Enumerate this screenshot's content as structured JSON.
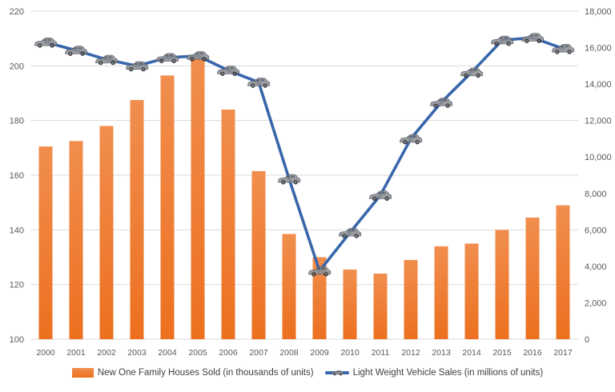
{
  "colors": {
    "bar_top": "#F18E4E",
    "bar_bottom": "#EC701F",
    "bar": "#ED7D31",
    "line": "#3866AB",
    "grid": "#DBDBDB",
    "axis_text": "#595959",
    "legend_text": "#404040",
    "car_body": "#8E9093",
    "car_window": "#555B66",
    "car_wheel": "#2E2F33",
    "car_hub": "#9AA0A6",
    "background": "#FFFFFF"
  },
  "chart_data": {
    "type": "combo-bar-line",
    "title": "",
    "categories": [
      "2000",
      "2001",
      "2002",
      "2003",
      "2004",
      "2005",
      "2006",
      "2007",
      "2008",
      "2009",
      "2010",
      "2011",
      "2012",
      "2013",
      "2014",
      "2015",
      "2016",
      "2017"
    ],
    "series": [
      {
        "name": "New One Family Houses Sold (in thousands of units)",
        "type": "bar",
        "axis": "left",
        "values": [
          170.5,
          172.5,
          178,
          187.5,
          196.5,
          203.5,
          184,
          161.5,
          138.5,
          130,
          125.5,
          124,
          129,
          134,
          135,
          140,
          144.5,
          149
        ]
      },
      {
        "name": "Light Weight Vehicle Sales (in millions of units)",
        "type": "line",
        "axis": "right",
        "marker": "car-icon",
        "values": [
          16300,
          15850,
          15350,
          15000,
          15450,
          15550,
          14750,
          14100,
          8800,
          3750,
          5850,
          7900,
          11000,
          13000,
          14650,
          16400,
          16550,
          15950
        ]
      }
    ],
    "left_axis": {
      "min": 100,
      "max": 220,
      "step": 20,
      "tick_labels": [
        "220",
        "200",
        "180",
        "160",
        "140",
        "120",
        "100"
      ]
    },
    "right_axis": {
      "min": 0,
      "max": 18000,
      "step": 2000,
      "tick_labels": [
        "18,000",
        "16,000",
        "14,000",
        "12,000",
        "10,000",
        "8,000",
        "6,000",
        "4,000",
        "2,000",
        "0"
      ]
    },
    "grid": true,
    "legend_position": "bottom"
  }
}
